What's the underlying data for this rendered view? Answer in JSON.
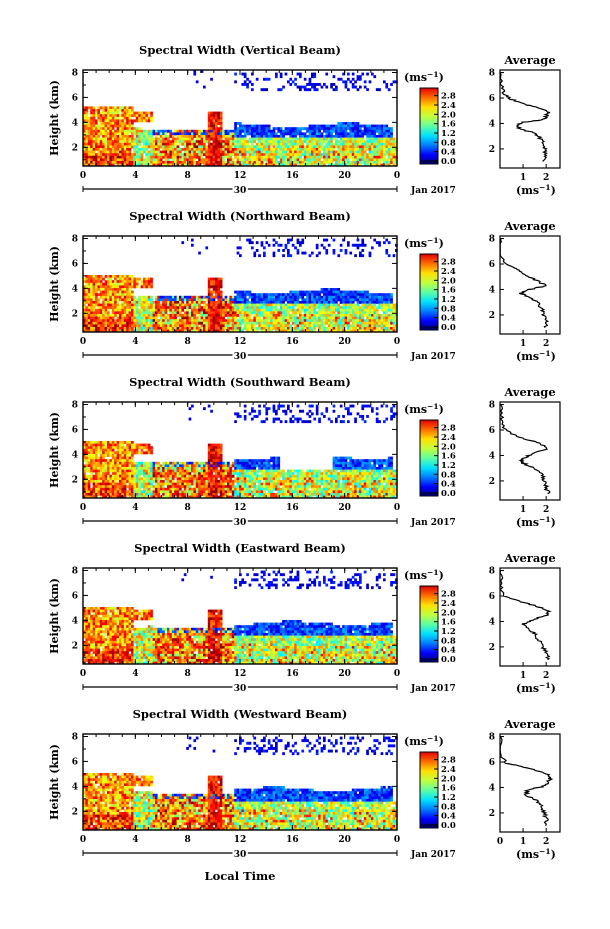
{
  "figure": {
    "xlabel": "Local Time",
    "date_label": "Jan 2017",
    "day_label": "30",
    "colorbar_unit": "(ms",
    "colorbar_unit_exp": "−1",
    "avg_title": "Average",
    "avg_xlabel": "(ms",
    "avg_xlabel_exp": "−1"
  },
  "chart_data": [
    {
      "type": "heatmap",
      "title": "Spectral Width (Vertical Beam)",
      "ylabel": "Height (km)",
      "x_ticks": [
        "0",
        "4",
        "8",
        "12",
        "16",
        "20",
        "0"
      ],
      "xlim": [
        0,
        24
      ],
      "y_ticks": [
        "2",
        "4",
        "6",
        "8"
      ],
      "ylim": [
        0.5,
        8.2
      ],
      "colorbar": {
        "ticks": [
          "0.0",
          "0.4",
          "0.8",
          "1.2",
          "1.6",
          "2.0",
          "2.4",
          "2.8"
        ],
        "range": [
          0,
          3.0
        ]
      },
      "average_profile": {
        "x_ticks": [
          "1",
          "2"
        ],
        "xlim": [
          0,
          2.6
        ],
        "ylim": [
          0.5,
          8.2
        ],
        "y_ticks": [
          "2",
          "4",
          "6",
          "8"
        ],
        "points": [
          [
            1.9,
            1.0
          ],
          [
            2.0,
            1.5
          ],
          [
            1.95,
            2.0
          ],
          [
            1.85,
            2.5
          ],
          [
            1.7,
            3.0
          ],
          [
            1.4,
            3.3
          ],
          [
            0.9,
            3.55
          ],
          [
            0.7,
            3.8
          ],
          [
            1.0,
            4.1
          ],
          [
            1.9,
            4.3
          ],
          [
            2.0,
            4.6
          ],
          [
            2.1,
            4.9
          ],
          [
            1.7,
            5.2
          ],
          [
            1.1,
            5.5
          ],
          [
            0.5,
            5.9
          ],
          [
            0.15,
            6.3
          ],
          [
            0.05,
            7.0
          ],
          [
            0.02,
            8.0
          ]
        ]
      }
    },
    {
      "type": "heatmap",
      "title": "Spectral Width (Northward Beam)",
      "ylabel": "Height (km)",
      "x_ticks": [
        "0",
        "4",
        "8",
        "12",
        "16",
        "20",
        "0"
      ],
      "xlim": [
        0,
        24
      ],
      "y_ticks": [
        "2",
        "4",
        "6",
        "8"
      ],
      "ylim": [
        0.5,
        8.2
      ],
      "colorbar": {
        "ticks": [
          "0.0",
          "0.4",
          "0.8",
          "1.2",
          "1.6",
          "2.0",
          "2.4",
          "2.8"
        ],
        "range": [
          0,
          3.0
        ]
      },
      "average_profile": {
        "x_ticks": [
          "1",
          "2"
        ],
        "xlim": [
          0,
          2.6
        ],
        "ylim": [
          0.5,
          8.2
        ],
        "y_ticks": [
          "2",
          "4",
          "6",
          "8"
        ],
        "points": [
          [
            2.0,
            1.0
          ],
          [
            2.0,
            1.5
          ],
          [
            1.9,
            2.0
          ],
          [
            1.8,
            2.5
          ],
          [
            1.6,
            3.0
          ],
          [
            1.2,
            3.4
          ],
          [
            0.9,
            3.7
          ],
          [
            1.3,
            4.0
          ],
          [
            2.0,
            4.3
          ],
          [
            1.6,
            4.7
          ],
          [
            1.2,
            5.1
          ],
          [
            0.8,
            5.5
          ],
          [
            0.4,
            5.9
          ],
          [
            0.1,
            6.4
          ],
          [
            0.03,
            7.2
          ],
          [
            0.02,
            8.0
          ]
        ]
      }
    },
    {
      "type": "heatmap",
      "title": "Spectral Width (Southward Beam)",
      "ylabel": "Height (km)",
      "x_ticks": [
        "0",
        "4",
        "8",
        "12",
        "16",
        "20",
        "0"
      ],
      "xlim": [
        0,
        24
      ],
      "y_ticks": [
        "2",
        "4",
        "6",
        "8"
      ],
      "ylim": [
        0.5,
        8.2
      ],
      "colorbar": {
        "ticks": [
          "0.0",
          "0.4",
          "0.8",
          "1.2",
          "1.6",
          "2.0",
          "2.4",
          "2.8"
        ],
        "range": [
          0,
          3.0
        ]
      },
      "average_profile": {
        "x_ticks": [
          "1",
          "2"
        ],
        "xlim": [
          0,
          2.6
        ],
        "ylim": [
          0.5,
          8.2
        ],
        "y_ticks": [
          "2",
          "4",
          "6",
          "8"
        ],
        "points": [
          [
            2.1,
            1.0
          ],
          [
            2.0,
            1.5
          ],
          [
            1.9,
            2.0
          ],
          [
            1.8,
            2.5
          ],
          [
            1.5,
            3.0
          ],
          [
            1.0,
            3.4
          ],
          [
            0.9,
            3.7
          ],
          [
            1.4,
            4.1
          ],
          [
            2.0,
            4.5
          ],
          [
            1.8,
            4.9
          ],
          [
            1.1,
            5.3
          ],
          [
            0.5,
            5.7
          ],
          [
            0.15,
            6.2
          ],
          [
            0.05,
            7.0
          ],
          [
            0.02,
            8.0
          ]
        ]
      }
    },
    {
      "type": "heatmap",
      "title": "Spectral Width (Eastward Beam)",
      "ylabel": "Height (km)",
      "x_ticks": [
        "0",
        "4",
        "8",
        "12",
        "16",
        "20",
        "0"
      ],
      "xlim": [
        0,
        24
      ],
      "y_ticks": [
        "2",
        "4",
        "6",
        "8"
      ],
      "ylim": [
        0.5,
        8.2
      ],
      "colorbar": {
        "ticks": [
          "0.0",
          "0.4",
          "0.8",
          "1.2",
          "1.6",
          "2.0",
          "2.4",
          "2.8"
        ],
        "range": [
          0,
          3.0
        ]
      },
      "average_profile": {
        "x_ticks": [
          "1",
          "2"
        ],
        "xlim": [
          0,
          2.6
        ],
        "ylim": [
          0.5,
          8.2
        ],
        "y_ticks": [
          "2",
          "4",
          "6",
          "8"
        ],
        "points": [
          [
            2.1,
            1.0
          ],
          [
            2.0,
            1.5
          ],
          [
            1.85,
            2.0
          ],
          [
            1.7,
            2.5
          ],
          [
            1.5,
            3.0
          ],
          [
            1.3,
            3.4
          ],
          [
            1.0,
            3.8
          ],
          [
            1.4,
            4.1
          ],
          [
            2.0,
            4.5
          ],
          [
            2.1,
            4.8
          ],
          [
            1.6,
            5.2
          ],
          [
            0.8,
            5.6
          ],
          [
            0.2,
            6.0
          ],
          [
            0.05,
            6.8
          ],
          [
            0.02,
            8.0
          ]
        ]
      }
    },
    {
      "type": "heatmap",
      "title": "Spectral Width (Westward Beam)",
      "ylabel": "Height (km)",
      "x_ticks": [
        "0",
        "4",
        "8",
        "12",
        "16",
        "20",
        "0"
      ],
      "xlim": [
        0,
        24
      ],
      "y_ticks": [
        "2",
        "4",
        "6",
        "8"
      ],
      "ylim": [
        0.5,
        8.2
      ],
      "colorbar": {
        "ticks": [
          "0.0",
          "0.4",
          "0.8",
          "1.2",
          "1.6",
          "2.0",
          "2.4",
          "2.8"
        ],
        "range": [
          0,
          3.0
        ]
      },
      "average_profile": {
        "x_ticks": [
          "0",
          "1",
          "2"
        ],
        "xlim": [
          0,
          2.6
        ],
        "ylim": [
          0.5,
          8.2
        ],
        "y_ticks": [
          "2",
          "4",
          "6",
          "8"
        ],
        "points": [
          [
            2.0,
            1.0
          ],
          [
            2.0,
            1.5
          ],
          [
            1.9,
            2.0
          ],
          [
            1.8,
            2.5
          ],
          [
            1.6,
            3.0
          ],
          [
            1.1,
            3.4
          ],
          [
            1.2,
            3.8
          ],
          [
            1.9,
            4.1
          ],
          [
            2.1,
            4.5
          ],
          [
            2.2,
            4.8
          ],
          [
            1.9,
            5.2
          ],
          [
            1.0,
            5.6
          ],
          [
            0.3,
            5.9
          ],
          [
            0.05,
            6.5
          ],
          [
            0.02,
            8.0
          ]
        ]
      }
    }
  ]
}
